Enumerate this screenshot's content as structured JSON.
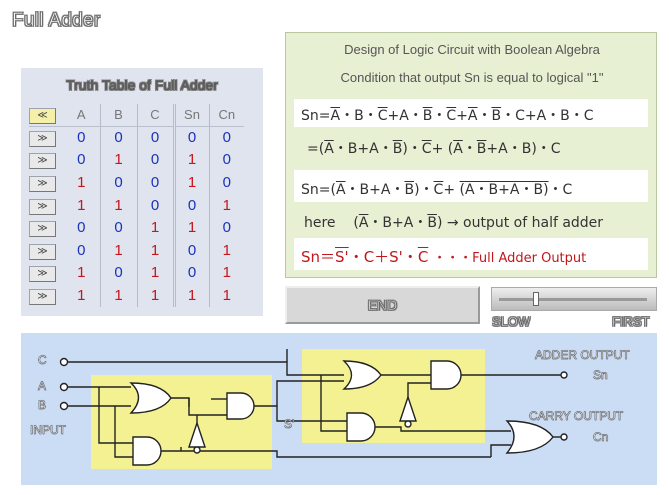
{
  "app": {
    "title": "Full Adder"
  },
  "truth_table": {
    "title": "Truth Table of Full Adder",
    "header_button": "≪",
    "columns": [
      "A",
      "B",
      "C",
      "Sn",
      "Cn"
    ],
    "row_button": "≫",
    "rows": [
      [
        "0",
        "0",
        "0",
        "0",
        "0"
      ],
      [
        "0",
        "1",
        "0",
        "1",
        "0"
      ],
      [
        "1",
        "0",
        "0",
        "1",
        "0"
      ],
      [
        "1",
        "1",
        "0",
        "0",
        "1"
      ],
      [
        "0",
        "0",
        "1",
        "1",
        "0"
      ],
      [
        "0",
        "1",
        "1",
        "0",
        "1"
      ],
      [
        "1",
        "0",
        "1",
        "0",
        "1"
      ],
      [
        "1",
        "1",
        "1",
        "1",
        "1"
      ]
    ]
  },
  "design": {
    "heading": "Design of  Logic Circuit with Boolean Algebra",
    "condition": "Condition that output Sn is equal to logical \"1\"",
    "half_adder_label": "→ output of half adder",
    "here_label": "here",
    "full_adder_label": "・・・Full Adder Output",
    "colors": {
      "highlight": "#c0171c",
      "panel": "#e8f0d4"
    }
  },
  "controls": {
    "end_label": "END",
    "slow_label": "SLOW",
    "fast_label": "FIRST",
    "speed_value": 0.25
  },
  "circuit": {
    "input_c": "C",
    "input_a": "A",
    "input_b": "B",
    "input_label": "INPUT",
    "intermediate": "S'",
    "adder_output": "ADDER OUTPUT",
    "sn": "Sn",
    "carry_output": "CARRY  OUTPUT",
    "cn": "Cn"
  }
}
